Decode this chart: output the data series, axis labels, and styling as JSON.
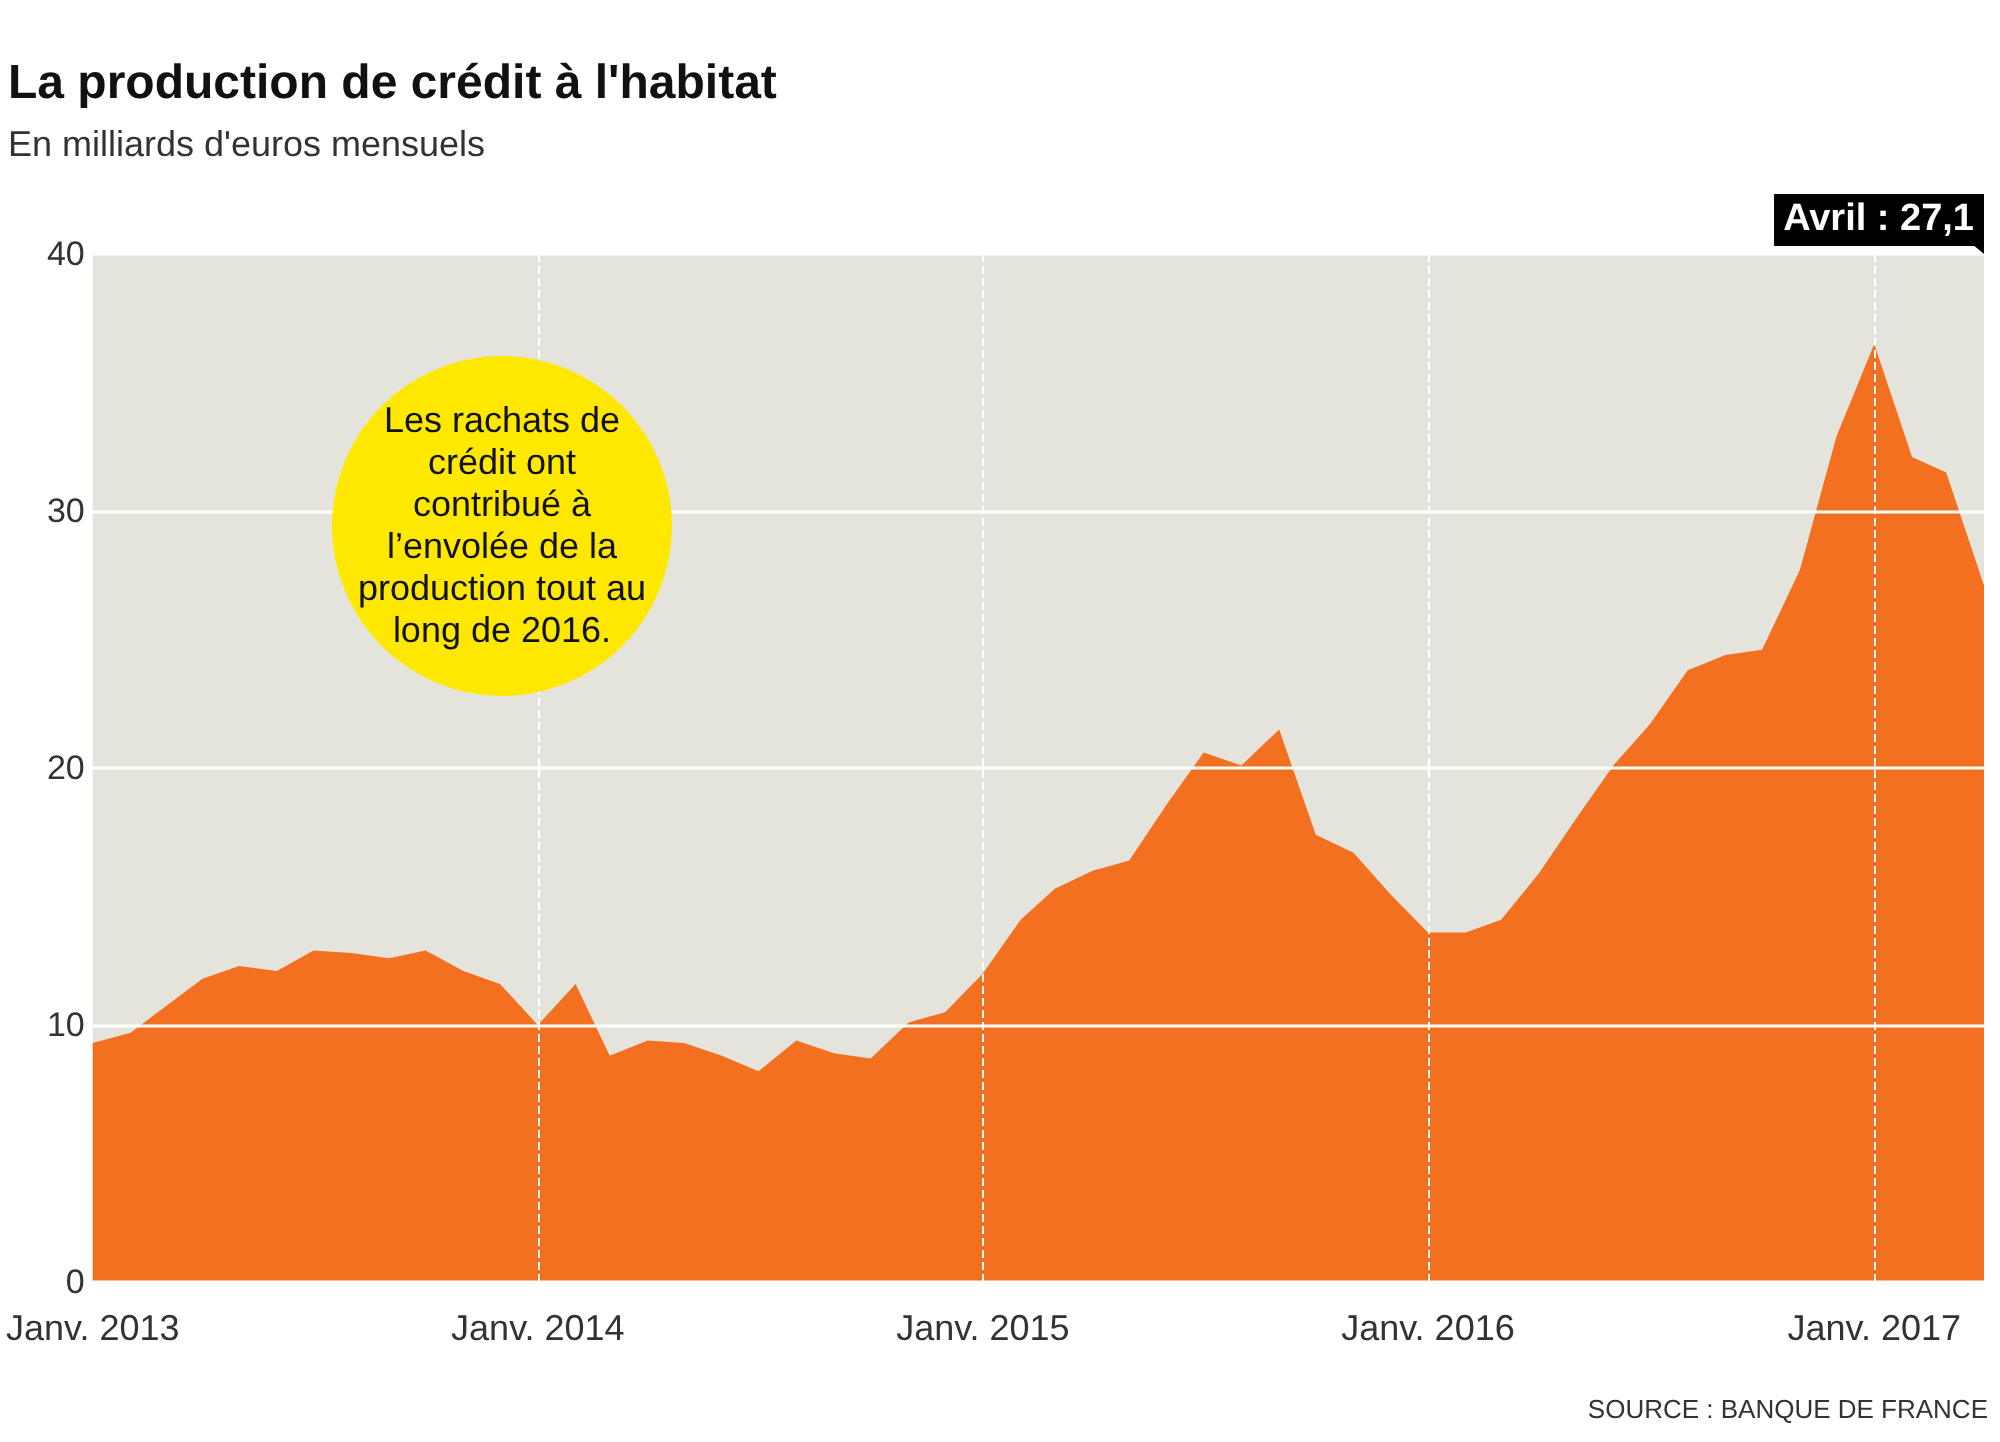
{
  "chart_data": {
    "type": "area",
    "title": "La production de crédit à l'habitat",
    "subtitle": "En milliards d'euros mensuels",
    "x": [
      "2013-01",
      "2013-02",
      "2013-03",
      "2013-04",
      "2013-05",
      "2013-06",
      "2013-07",
      "2013-08",
      "2013-09",
      "2013-10",
      "2013-11",
      "2013-12",
      "2014-01",
      "2014-02",
      "2014-03",
      "2014-04",
      "2014-05",
      "2014-06",
      "2014-07",
      "2014-08",
      "2014-09",
      "2014-10",
      "2014-11",
      "2014-12",
      "2015-01",
      "2015-02",
      "2015-03",
      "2015-04",
      "2015-05",
      "2015-06",
      "2015-07",
      "2015-08",
      "2015-09",
      "2015-10",
      "2015-11",
      "2015-12",
      "2016-01",
      "2016-02",
      "2016-03",
      "2016-04",
      "2016-05",
      "2016-06",
      "2016-07",
      "2016-08",
      "2016-09",
      "2016-10",
      "2016-11",
      "2016-12",
      "2017-01",
      "2017-02",
      "2017-03",
      "2017-04"
    ],
    "series": [
      {
        "color": "#f37021",
        "values": [
          9.3,
          9.7,
          10.7,
          11.8,
          12.3,
          12.1,
          12.9,
          12.8,
          12.6,
          12.9,
          12.1,
          11.6,
          10.0,
          11.6,
          8.8,
          9.4,
          9.3,
          8.8,
          8.2,
          9.4,
          8.9,
          8.7,
          10.1,
          10.5,
          12.0,
          14.1,
          15.3,
          16.0,
          16.4,
          18.6,
          20.6,
          20.1,
          21.5,
          17.4,
          16.7,
          15.1,
          13.6,
          13.6,
          14.1,
          15.9,
          18.0,
          20.1,
          21.7,
          23.8,
          24.4,
          24.6,
          27.7,
          32.9,
          36.5,
          32.1,
          31.5,
          27.1
        ]
      }
    ],
    "xlim": [
      "2013-01",
      "2017-04"
    ],
    "xticks": [
      {
        "value": "2013-01",
        "label": "Janv. 2013"
      },
      {
        "value": "2014-01",
        "label": "Janv. 2014"
      },
      {
        "value": "2015-01",
        "label": "Janv. 2015"
      },
      {
        "value": "2016-01",
        "label": "Janv. 2016"
      },
      {
        "value": "2017-01",
        "label": "Janv. 2017"
      }
    ],
    "ylim": [
      0,
      40
    ],
    "yticks": [
      0,
      10,
      20,
      30,
      40
    ],
    "grid": "y",
    "marker": "none",
    "ref_lines": [
      {
        "axis": "x",
        "value": "2014-01",
        "color": "#ffffff",
        "line_style": "dashed"
      },
      {
        "axis": "x",
        "value": "2015-01",
        "color": "#ffffff",
        "line_style": "dashed"
      },
      {
        "axis": "x",
        "value": "2016-01",
        "color": "#ffffff",
        "line_style": "dashed"
      },
      {
        "axis": "x",
        "value": "2017-01",
        "color": "#ffffff",
        "line_style": "dashed"
      }
    ],
    "annotations": [
      "Avril : 27,1",
      "Les rachats de crédit ont contribué à l’envolée de la production tout au long de 2016.",
      "SOURCE : BANQUE DE FRANCE"
    ]
  }
}
